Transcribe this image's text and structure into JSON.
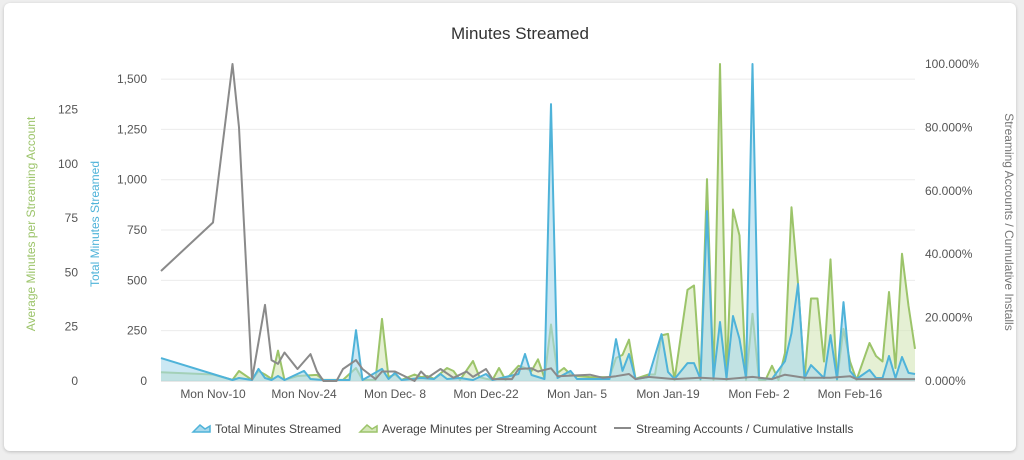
{
  "chart_data": {
    "type": "area",
    "title": "Minutes Streamed",
    "x_unit": "days relative to Mon Nov-10",
    "x_range": [
      -8,
      108
    ],
    "x_ticks": [
      {
        "x": 0,
        "label": "Mon Nov-10"
      },
      {
        "x": 14,
        "label": "Mon Nov-24"
      },
      {
        "x": 28,
        "label": "Mon Dec- 8"
      },
      {
        "x": 42,
        "label": "Mon Dec-22"
      },
      {
        "x": 56,
        "label": "Mon Jan- 5"
      },
      {
        "x": 70,
        "label": "Mon Jan-19"
      },
      {
        "x": 84,
        "label": "Mon Feb- 2"
      },
      {
        "x": 98,
        "label": "Mon Feb-16"
      }
    ],
    "axes": {
      "total": {
        "label": "Total Minutes Streamed",
        "range": [
          0,
          1575
        ],
        "ticks": [
          "0",
          "250",
          "500",
          "750",
          "1,000",
          "1,250",
          "1,500"
        ],
        "tick_values": [
          0,
          250,
          500,
          750,
          1000,
          1250,
          1500
        ],
        "color": "#4fb3d9"
      },
      "average": {
        "label": "Average Minutes per Streaming Account",
        "range": [
          0,
          146
        ],
        "ticks": [
          "0",
          "25",
          "50",
          "75",
          "100",
          "125"
        ],
        "tick_values": [
          0,
          25,
          50,
          75,
          100,
          125
        ],
        "color": "#9cc46a"
      },
      "ratio": {
        "label": "Streaming Accounts / Cumulative Installs",
        "range": [
          0,
          100
        ],
        "ticks": [
          "0.000%",
          "20.000%",
          "40.000%",
          "60.000%",
          "80.000%",
          "100.000%"
        ],
        "tick_values": [
          0,
          20,
          40,
          60,
          80,
          100
        ],
        "color": "#777777"
      }
    },
    "grid": true,
    "legend_position": "bottom",
    "series": [
      {
        "name": "Total Minutes Streamed",
        "axis": "total",
        "kind": "area",
        "color": "#4fb3d9",
        "fill": "#a9d9ec",
        "points": [
          [
            -8,
            114
          ],
          [
            3,
            5
          ],
          [
            4,
            15
          ],
          [
            6,
            5
          ],
          [
            7,
            60
          ],
          [
            8,
            15
          ],
          [
            9,
            5
          ],
          [
            10,
            25
          ],
          [
            11,
            5
          ],
          [
            14,
            50
          ],
          [
            15,
            10
          ],
          [
            17,
            5
          ],
          [
            21,
            5
          ],
          [
            22,
            253
          ],
          [
            23,
            5
          ],
          [
            26,
            60
          ],
          [
            27,
            10
          ],
          [
            28,
            40
          ],
          [
            29,
            5
          ],
          [
            32,
            15
          ],
          [
            34,
            10
          ],
          [
            35,
            35
          ],
          [
            36,
            10
          ],
          [
            38,
            15
          ],
          [
            40,
            5
          ],
          [
            42,
            35
          ],
          [
            43,
            5
          ],
          [
            47,
            35
          ],
          [
            48,
            134
          ],
          [
            49,
            30
          ],
          [
            51,
            10
          ],
          [
            52,
            1376
          ],
          [
            53,
            15
          ],
          [
            55,
            50
          ],
          [
            56,
            10
          ],
          [
            58,
            10
          ],
          [
            61,
            10
          ],
          [
            62,
            208
          ],
          [
            63,
            50
          ],
          [
            64,
            134
          ],
          [
            65,
            10
          ],
          [
            67,
            20
          ],
          [
            69,
            233
          ],
          [
            70,
            45
          ],
          [
            71,
            10
          ],
          [
            73,
            89
          ],
          [
            74,
            89
          ],
          [
            75,
            10
          ],
          [
            76,
            844
          ],
          [
            77,
            15
          ],
          [
            78,
            293
          ],
          [
            79,
            15
          ],
          [
            80,
            323
          ],
          [
            81,
            209
          ],
          [
            82,
            15
          ],
          [
            83,
            1575
          ],
          [
            84,
            15
          ],
          [
            86,
            10
          ],
          [
            88,
            99
          ],
          [
            89,
            238
          ],
          [
            90,
            482
          ],
          [
            91,
            15
          ],
          [
            92,
            79
          ],
          [
            94,
            15
          ],
          [
            95,
            228
          ],
          [
            96,
            10
          ],
          [
            97,
            392
          ],
          [
            98,
            50
          ],
          [
            99,
            10
          ],
          [
            101,
            55
          ],
          [
            102,
            15
          ],
          [
            103,
            15
          ],
          [
            104,
            124
          ],
          [
            105,
            15
          ],
          [
            106,
            119
          ],
          [
            107,
            40
          ],
          [
            108,
            35
          ]
        ]
      },
      {
        "name": "Average Minutes per Streaming Account",
        "axis": "average",
        "kind": "area",
        "color": "#9cc46a",
        "fill": "#d3e6b8",
        "points": [
          [
            -8,
            4
          ],
          [
            0,
            3
          ],
          [
            3,
            0.5
          ],
          [
            4,
            4.6
          ],
          [
            6,
            0.5
          ],
          [
            7,
            4.6
          ],
          [
            8,
            3
          ],
          [
            9,
            1
          ],
          [
            10,
            14
          ],
          [
            11,
            0.5
          ],
          [
            13,
            2.3
          ],
          [
            16,
            2.8
          ],
          [
            17,
            0.5
          ],
          [
            20,
            0.5
          ],
          [
            22,
            6
          ],
          [
            23,
            0.5
          ],
          [
            25,
            0.5
          ],
          [
            26,
            28.6
          ],
          [
            27,
            1.8
          ],
          [
            28,
            3
          ],
          [
            29,
            0.5
          ],
          [
            31,
            3
          ],
          [
            32,
            1.8
          ],
          [
            33,
            2.3
          ],
          [
            34,
            1
          ],
          [
            36,
            6
          ],
          [
            37,
            4.6
          ],
          [
            38,
            0.5
          ],
          [
            40,
            9.2
          ],
          [
            41,
            1.8
          ],
          [
            42,
            1
          ],
          [
            43,
            0.5
          ],
          [
            44,
            6
          ],
          [
            45,
            0.5
          ],
          [
            47,
            7
          ],
          [
            48,
            6
          ],
          [
            49,
            4.6
          ],
          [
            50,
            10
          ],
          [
            51,
            1.4
          ],
          [
            52,
            26
          ],
          [
            53,
            3.7
          ],
          [
            54,
            6
          ],
          [
            55,
            3
          ],
          [
            56,
            2.3
          ],
          [
            58,
            1.8
          ],
          [
            61,
            1.8
          ],
          [
            62,
            10.6
          ],
          [
            63,
            12
          ],
          [
            64,
            19
          ],
          [
            65,
            1
          ],
          [
            67,
            3
          ],
          [
            68,
            3
          ],
          [
            69,
            21
          ],
          [
            70,
            21.7
          ],
          [
            71,
            0.5
          ],
          [
            73,
            42
          ],
          [
            74,
            44
          ],
          [
            75,
            0.5
          ],
          [
            76,
            93
          ],
          [
            77,
            0.5
          ],
          [
            78,
            146
          ],
          [
            79,
            0.5
          ],
          [
            80,
            79
          ],
          [
            81,
            67
          ],
          [
            82,
            0.5
          ],
          [
            83,
            31
          ],
          [
            84,
            0.5
          ],
          [
            85,
            0.5
          ],
          [
            86,
            7
          ],
          [
            87,
            0.5
          ],
          [
            88,
            13
          ],
          [
            89,
            80
          ],
          [
            90,
            45
          ],
          [
            91,
            0.5
          ],
          [
            92,
            38
          ],
          [
            93,
            38
          ],
          [
            94,
            9
          ],
          [
            95,
            56
          ],
          [
            96,
            0.5
          ],
          [
            97,
            24
          ],
          [
            98,
            9
          ],
          [
            99,
            0.5
          ],
          [
            101,
            17.5
          ],
          [
            102,
            11.5
          ],
          [
            103,
            9
          ],
          [
            104,
            41
          ],
          [
            105,
            6
          ],
          [
            106,
            58.6
          ],
          [
            107,
            34.6
          ],
          [
            108,
            14.8
          ]
        ]
      },
      {
        "name": "Streaming Accounts / Cumulative Installs",
        "axis": "ratio",
        "kind": "line",
        "color": "#8a8a8a",
        "points": [
          [
            -8,
            34.7
          ],
          [
            0,
            50
          ],
          [
            3,
            100
          ],
          [
            4,
            80
          ],
          [
            6,
            0.5
          ],
          [
            8,
            24
          ],
          [
            9,
            6.6
          ],
          [
            10,
            5.4
          ],
          [
            11,
            9
          ],
          [
            13,
            3.8
          ],
          [
            15,
            8.5
          ],
          [
            16,
            3
          ],
          [
            17,
            0
          ],
          [
            19,
            0
          ],
          [
            20,
            3.8
          ],
          [
            22,
            6.6
          ],
          [
            23,
            3.8
          ],
          [
            25,
            0.6
          ],
          [
            26,
            3
          ],
          [
            28,
            3
          ],
          [
            31,
            0
          ],
          [
            32,
            3
          ],
          [
            33,
            1
          ],
          [
            35,
            3.8
          ],
          [
            37,
            1
          ],
          [
            39,
            3
          ],
          [
            40,
            1.3
          ],
          [
            42,
            3.8
          ],
          [
            43,
            0.6
          ],
          [
            46,
            0.6
          ],
          [
            47,
            3.8
          ],
          [
            49,
            4
          ],
          [
            50,
            3
          ],
          [
            52,
            4
          ],
          [
            53,
            1.5
          ],
          [
            58,
            2
          ],
          [
            60,
            1
          ],
          [
            62,
            1.5
          ],
          [
            64,
            2.2
          ],
          [
            65,
            0.6
          ],
          [
            67,
            1.3
          ],
          [
            71,
            0.6
          ],
          [
            75,
            1
          ],
          [
            79,
            0.6
          ],
          [
            83,
            1.3
          ],
          [
            86,
            0.6
          ],
          [
            88,
            2
          ],
          [
            91,
            1
          ],
          [
            95,
            1
          ],
          [
            98,
            1.5
          ],
          [
            99,
            0.6
          ],
          [
            108,
            0.6
          ]
        ]
      }
    ]
  }
}
